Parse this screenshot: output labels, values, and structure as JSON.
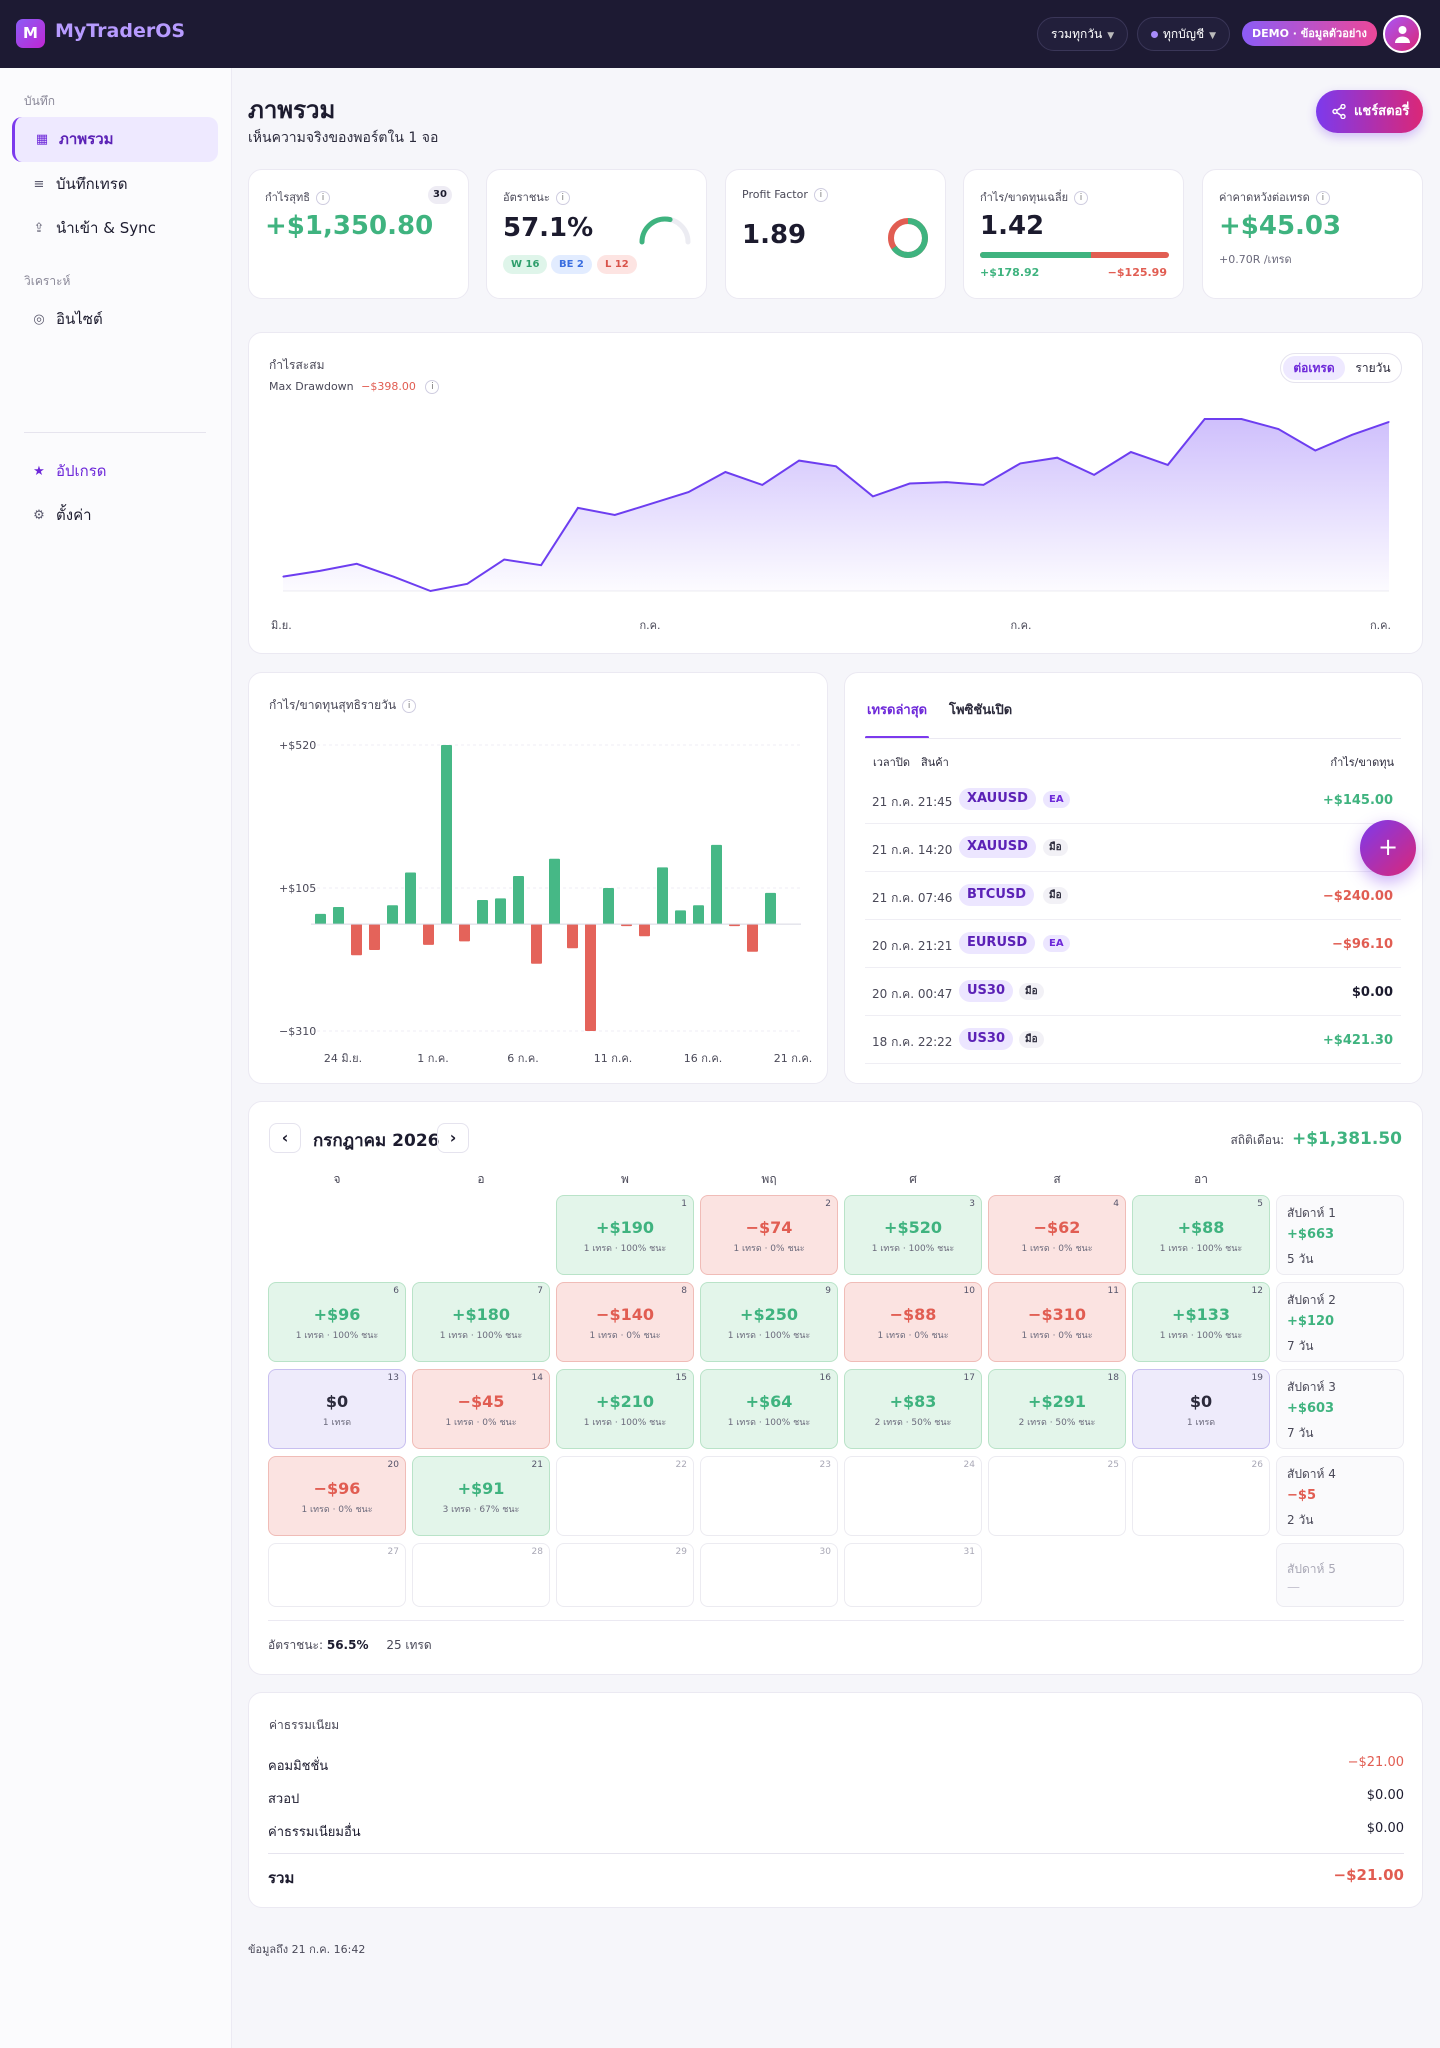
{
  "app": {
    "logo_letter": "M",
    "brand": "MyTraderOS"
  },
  "topbar": {
    "range_filter": "รวมทุกวัน",
    "account_filter": "ทุกบัญชี",
    "demo_badge": "DEMO · ข้อมูลตัวอย่าง"
  },
  "sidebar": {
    "section_journal": "บันทึก",
    "section_analysis": "วิเคราะห์",
    "items": [
      {
        "label": "ภาพรวม",
        "icon": "grid-icon",
        "active": true
      },
      {
        "label": "บันทึกเทรด",
        "icon": "list-icon"
      },
      {
        "label": "นำเข้า & Sync",
        "icon": "upload-icon"
      },
      {
        "label": "อินไซต์",
        "icon": "target-icon"
      },
      {
        "label": "อัปเกรด",
        "icon": "star-icon"
      },
      {
        "label": "ตั้งค่า",
        "icon": "gear-icon"
      }
    ]
  },
  "header": {
    "title": "ภาพรวม",
    "subtitle": "เห็นความจริงของพอร์ตใน 1 จอ",
    "share_label": "แชร์สตอรี่"
  },
  "kpis": {
    "net_profit": {
      "label": "กำไรสุทธิ",
      "value": "+$1,350.80",
      "badge": "30"
    },
    "win_rate": {
      "label": "อัตราชนะ",
      "value": "57.1%",
      "w": "W 16",
      "be": "BE 2",
      "l": "L 12",
      "gauge_fraction": 0.571
    },
    "profit_factor": {
      "label": "Profit Factor",
      "value": "1.89",
      "ring_fraction": 0.654
    },
    "avg_pl": {
      "label": "กำไร/ขาดทุนเฉลี่ย",
      "value": "1.42",
      "avg_win": "+$178.92",
      "avg_loss": "−$125.99",
      "win_fraction": 0.587
    },
    "expectancy": {
      "label": "ค่าคาดหวังต่อเทรด",
      "value": "+$45.03",
      "sub": "+0.70R /เทรด"
    }
  },
  "equity": {
    "title": "กำไรสะสม",
    "drawdown_label": "Max Drawdown",
    "drawdown_value": "−$398.00",
    "toggle": [
      "ต่อเทรด",
      "รายวัน"
    ],
    "toggle_active": 0
  },
  "daily": {
    "title": "กำไร/ขาดทุนสุทธิรายวัน"
  },
  "trades": {
    "tabs": [
      "เทรดล่าสุด",
      "โพซิชันเปิด"
    ],
    "col_time": "เวลาปิด",
    "col_symbol": "สินค้า",
    "col_pl": "กำไร/ขาดทุน",
    "rows": [
      {
        "time": "21 ก.ค. 21:45",
        "symbol": "XAUUSD",
        "source": "EA",
        "pl": "+$145.00",
        "dir": "win"
      },
      {
        "time": "21 ก.ค. 14:20",
        "symbol": "XAUUSD",
        "source": "มือ",
        "pl": "+$1",
        "dir": "win"
      },
      {
        "time": "21 ก.ค. 07:46",
        "symbol": "BTCUSD",
        "source": "มือ",
        "pl": "−$240.00",
        "dir": "loss"
      },
      {
        "time": "20 ก.ค. 21:21",
        "symbol": "EURUSD",
        "source": "EA",
        "pl": "−$96.10",
        "dir": "loss"
      },
      {
        "time": "20 ก.ค. 00:47",
        "symbol": "US30",
        "source": "มือ",
        "pl": "$0.00",
        "dir": "be"
      },
      {
        "time": "18 ก.ค. 22:22",
        "symbol": "US30",
        "source": "มือ",
        "pl": "+$421.30",
        "dir": "win"
      }
    ],
    "fab": "+"
  },
  "calendar": {
    "month": "กรกฎาคม 2026",
    "prev": "‹",
    "next": "›",
    "monthly_label": "สถิติเดือน:",
    "monthly_value": "+$1,381.50",
    "dow": [
      "จ",
      "อ",
      "พ",
      "พฤ",
      "ศ",
      "ส",
      "อา"
    ],
    "cells": [
      {
        "d": "1",
        "amt": "+$190",
        "det": "1 เทรด · 100% ชนะ",
        "k": "win"
      },
      {
        "d": "2",
        "amt": "−$74",
        "det": "1 เทรด · 0% ชนะ",
        "k": "loss"
      },
      {
        "d": "3",
        "amt": "+$520",
        "det": "1 เทรด · 100% ชนะ",
        "k": "win"
      },
      {
        "d": "4",
        "amt": "−$62",
        "det": "1 เทรด · 0% ชนะ",
        "k": "loss"
      },
      {
        "d": "5",
        "amt": "+$88",
        "det": "1 เทรด · 100% ชนะ",
        "k": "win"
      },
      {
        "d": "6",
        "amt": "+$96",
        "det": "1 เทรด · 100% ชนะ",
        "k": "win"
      },
      {
        "d": "7",
        "amt": "+$180",
        "det": "1 เทรด · 100% ชนะ",
        "k": "win"
      },
      {
        "d": "8",
        "amt": "−$140",
        "det": "1 เทรด · 0% ชนะ",
        "k": "loss"
      },
      {
        "d": "9",
        "amt": "+$250",
        "det": "1 เทรด · 100% ชนะ",
        "k": "win"
      },
      {
        "d": "10",
        "amt": "−$88",
        "det": "1 เทรด · 0% ชนะ",
        "k": "loss"
      },
      {
        "d": "11",
        "amt": "−$310",
        "det": "1 เทรด · 0% ชนะ",
        "k": "loss"
      },
      {
        "d": "12",
        "amt": "+$133",
        "det": "1 เทรด · 100% ชนะ",
        "k": "win"
      },
      {
        "d": "13",
        "amt": "$0",
        "det": "1 เทรด",
        "k": "be"
      },
      {
        "d": "14",
        "amt": "−$45",
        "det": "1 เทรด · 0% ชนะ",
        "k": "loss"
      },
      {
        "d": "15",
        "amt": "+$210",
        "det": "1 เทรด · 100% ชนะ",
        "k": "win"
      },
      {
        "d": "16",
        "amt": "+$64",
        "det": "1 เทรด · 100% ชนะ",
        "k": "win"
      },
      {
        "d": "17",
        "amt": "+$83",
        "det": "2 เทรด · 50% ชนะ",
        "k": "win"
      },
      {
        "d": "18",
        "amt": "+$291",
        "det": "2 เทรด · 50% ชนะ",
        "k": "win"
      },
      {
        "d": "19",
        "amt": "$0",
        "det": "1 เทรด",
        "k": "be"
      },
      {
        "d": "20",
        "amt": "−$96",
        "det": "1 เทรด · 0% ชนะ",
        "k": "loss"
      },
      {
        "d": "21",
        "amt": "+$91",
        "det": "3 เทรด · 67% ชนะ",
        "k": "win"
      },
      {
        "d": "22",
        "amt": "",
        "det": "",
        "k": "empty"
      },
      {
        "d": "23",
        "amt": "",
        "det": "",
        "k": "empty"
      },
      {
        "d": "24",
        "amt": "",
        "det": "",
        "k": "empty"
      },
      {
        "d": "25",
        "amt": "",
        "det": "",
        "k": "empty"
      },
      {
        "d": "26",
        "amt": "",
        "det": "",
        "k": "empty"
      },
      {
        "d": "27",
        "amt": "",
        "det": "",
        "k": "empty"
      },
      {
        "d": "28",
        "amt": "",
        "det": "",
        "k": "empty"
      },
      {
        "d": "29",
        "amt": "",
        "det": "",
        "k": "empty"
      },
      {
        "d": "30",
        "amt": "",
        "det": "",
        "k": "empty"
      },
      {
        "d": "31",
        "amt": "",
        "det": "",
        "k": "empty"
      }
    ],
    "weeks": [
      {
        "label": "สัปดาห์ 1",
        "amt": "+$663",
        "days": "5 วัน",
        "k": "win"
      },
      {
        "label": "สัปดาห์ 2",
        "amt": "+$120",
        "days": "7 วัน",
        "k": "win"
      },
      {
        "label": "สัปดาห์ 3",
        "amt": "+$603",
        "days": "7 วัน",
        "k": "win"
      },
      {
        "label": "สัปดาห์ 4",
        "amt": "−$5",
        "days": "2 วัน",
        "k": "loss"
      },
      {
        "label": "สัปดาห์ 5",
        "amt": "—",
        "days": "",
        "k": "empty"
      }
    ],
    "footer_winrate_label": "อัตราชนะ:",
    "footer_winrate": "56.5%",
    "footer_trades": "25 เทรด"
  },
  "fees": {
    "title": "ค่าธรรมเนียม",
    "rows": [
      {
        "label": "คอมมิชชั่น",
        "value": "−$21.00",
        "k": "loss"
      },
      {
        "label": "สวอป",
        "value": "$0.00",
        "k": "be"
      },
      {
        "label": "ค่าธรรมเนียมอื่น",
        "value": "$0.00",
        "k": "be"
      }
    ],
    "total_label": "รวม",
    "total_value": "−$21.00"
  },
  "footer": {
    "updated": "ข้อมูลถึง 21 ก.ค. 16:42"
  },
  "colors": {
    "accent": "#7c3aed",
    "win": "#3fb37f",
    "loss": "#e15d52",
    "topbar": "#1d1a33"
  },
  "chart_data": [
    {
      "type": "area",
      "title": "กำไรสะสม",
      "x": [
        1,
        2,
        3,
        4,
        5,
        6,
        7,
        8,
        9,
        10,
        11,
        12,
        13,
        14,
        15,
        16,
        17,
        18,
        19,
        20,
        21,
        22,
        23,
        24,
        25,
        26,
        27,
        28,
        29,
        30,
        31
      ],
      "x_tick_labels": [
        "มิ.ย.",
        "ก.ค.",
        "ก.ค.",
        "ก.ค."
      ],
      "series": [
        {
          "values": [
            0,
            40,
            90,
            0,
            -100,
            -50,
            120,
            80,
            480,
            430,
            510,
            590,
            730,
            640,
            810,
            770,
            560,
            650,
            660,
            640,
            790,
            830,
            710,
            870,
            780,
            1100,
            1100,
            1030,
            880,
            990,
            1080
          ]
        }
      ]
    },
    {
      "type": "bar",
      "title": "กำไร/ขาดทุนสุทธิรายวัน",
      "x_tick_labels": [
        "24 มิ.ย.",
        "1 ก.ค.",
        "6 ก.ค.",
        "11 ก.ค.",
        "16 ก.ค.",
        "21 ก.ค."
      ],
      "y_tick_labels": [
        "+$520",
        "+$105",
        "−$310"
      ],
      "ylim": [
        -310,
        520
      ],
      "values": [
        30,
        50,
        -90,
        -75,
        55,
        150,
        -60,
        520,
        -50,
        70,
        75,
        140,
        -115,
        190,
        -70,
        -310,
        105,
        -5,
        -35,
        165,
        40,
        55,
        230,
        -5,
        -80,
        91
      ]
    }
  ]
}
